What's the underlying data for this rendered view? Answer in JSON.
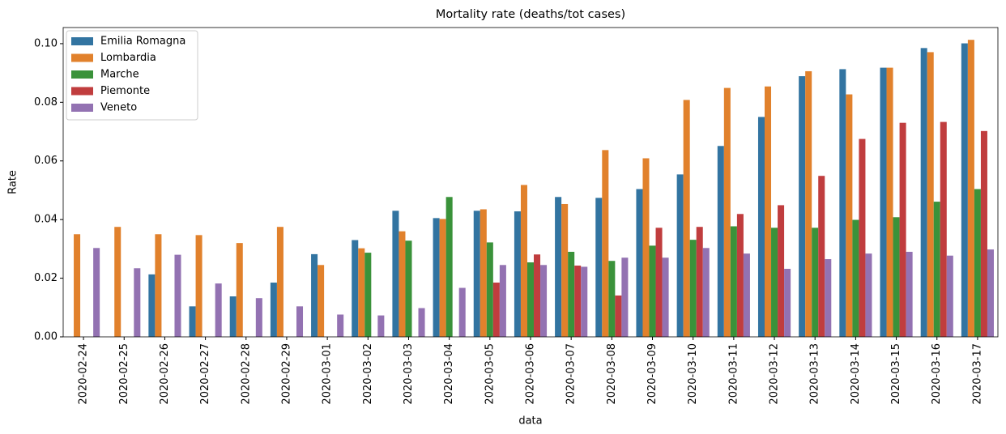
{
  "chart_data": {
    "type": "bar",
    "title": "Mortality rate (deaths/tot cases)",
    "x_label": "data",
    "y_label": "Rate",
    "categories": [
      "2020-02-24",
      "2020-02-25",
      "2020-02-26",
      "2020-02-27",
      "2020-02-28",
      "2020-02-29",
      "2020-03-01",
      "2020-03-02",
      "2020-03-03",
      "2020-03-04",
      "2020-03-05",
      "2020-03-06",
      "2020-03-07",
      "2020-03-08",
      "2020-03-09",
      "2020-03-10",
      "2020-03-11",
      "2020-03-12",
      "2020-03-13",
      "2020-03-14",
      "2020-03-15",
      "2020-03-16",
      "2020-03-17"
    ],
    "series": [
      {
        "name": "Emilia Romagna",
        "color": "#3274a1",
        "values": [
          null,
          null,
          0.0213,
          0.0104,
          0.0138,
          0.0185,
          0.0282,
          0.033,
          0.043,
          0.0405,
          0.043,
          0.0428,
          0.0477,
          0.0474,
          0.0504,
          0.0554,
          0.0651,
          0.075,
          0.0889,
          0.0913,
          0.0918,
          0.0985,
          0.1001
        ]
      },
      {
        "name": "Lombardia",
        "color": "#e1812c",
        "values": [
          0.035,
          0.0375,
          0.035,
          0.0347,
          0.032,
          0.0375,
          0.0245,
          0.0302,
          0.036,
          0.0402,
          0.0435,
          0.0518,
          0.0453,
          0.0637,
          0.0609,
          0.0808,
          0.0849,
          0.0854,
          0.0906,
          0.0827,
          0.0918,
          0.0971,
          0.1013
        ]
      },
      {
        "name": "Marche",
        "color": "#3a923a",
        "values": [
          null,
          null,
          null,
          null,
          null,
          null,
          null,
          0.0287,
          0.0328,
          0.0477,
          0.0322,
          0.0254,
          0.029,
          0.0259,
          0.0311,
          0.0331,
          0.0377,
          0.0372,
          0.0372,
          0.0399,
          0.0408,
          0.0461,
          0.0504
        ]
      },
      {
        "name": "Piemonte",
        "color": "#c03d3e",
        "values": [
          null,
          null,
          null,
          null,
          null,
          null,
          null,
          null,
          null,
          null,
          0.0185,
          0.0281,
          0.0243,
          0.0141,
          0.0372,
          0.0375,
          0.0419,
          0.0449,
          0.0549,
          0.0675,
          0.073,
          0.0733,
          0.0702
        ]
      },
      {
        "name": "Veneto",
        "color": "#9372b2",
        "values": [
          0.0303,
          0.0234,
          0.028,
          0.0182,
          0.0132,
          0.0104,
          0.0076,
          0.0073,
          0.0098,
          0.0167,
          0.0245,
          0.0245,
          0.0239,
          0.027,
          0.027,
          0.0303,
          0.0284,
          0.0232,
          0.0265,
          0.0284,
          0.029,
          0.0277,
          0.0298
        ]
      }
    ],
    "ylim": [
      0,
      0.1055
    ],
    "yticks": [
      {
        "value": 0,
        "label": "0.00"
      },
      {
        "value": 0.02,
        "label": "0.02"
      },
      {
        "value": 0.04,
        "label": "0.04"
      },
      {
        "value": 0.06,
        "label": "0.06"
      },
      {
        "value": 0.08,
        "label": "0.08"
      },
      {
        "value": 0.1,
        "label": "0.10"
      }
    ],
    "legend": "upper left"
  }
}
